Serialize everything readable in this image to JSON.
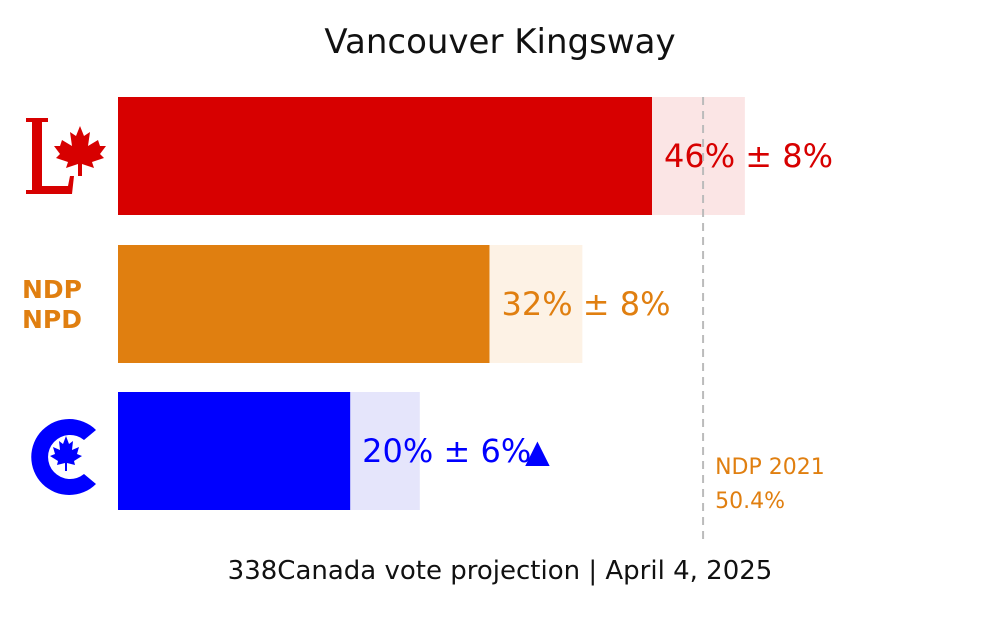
{
  "chart_data": {
    "type": "bar",
    "orientation": "horizontal",
    "title": "Vancouver Kingsway",
    "footer": "338Canada vote projection | April 4, 2025",
    "xlim": [
      0,
      65
    ],
    "bars": [
      {
        "party": "Liberal",
        "value": 46,
        "margin": 8,
        "label": "46% ± 8%",
        "trend": "",
        "color": "#d70000",
        "range_color": "#fbe5e5",
        "logo": "liberal-logo"
      },
      {
        "party": "NDP",
        "value": 32,
        "margin": 8,
        "label": "32% ± 8%",
        "trend": "",
        "color": "#e07f10",
        "range_color": "#fdf2e5",
        "logo": "ndp-logo",
        "logo_text": [
          "NDP",
          "NPD"
        ]
      },
      {
        "party": "Conservative",
        "value": 20,
        "margin": 6,
        "label": "20% ± 6%",
        "trend": "▲",
        "color": "#0000ff",
        "range_color": "#e5e5fb",
        "logo": "conservative-logo"
      }
    ],
    "reference": {
      "value": 50.4,
      "label_line1": "NDP 2021",
      "label_line2": "50.4%",
      "color": "#e07f10",
      "line_color": "#bbbbbb"
    }
  }
}
